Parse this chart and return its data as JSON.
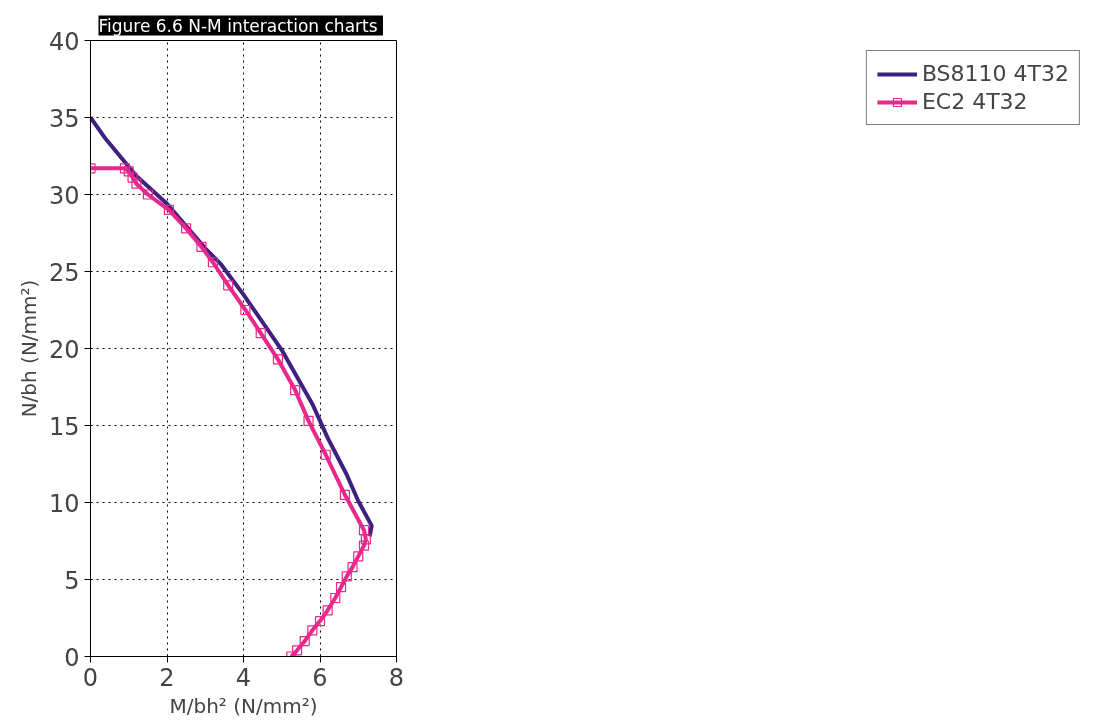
{
  "chart_data": {
    "type": "line",
    "title": "Figure 6.6  N-M interaction charts",
    "xlabel": "M/bh² (N/mm²)",
    "ylabel": "N/bh (N/mm²)",
    "xlim": [
      0,
      8
    ],
    "ylim": [
      0,
      40
    ],
    "xticks": [
      0,
      2,
      4,
      6,
      8
    ],
    "yticks": [
      0,
      5,
      10,
      15,
      20,
      25,
      30,
      35,
      40
    ],
    "grid": true,
    "legend": "right",
    "line_style": "solid",
    "series": [
      {
        "name": "BS8110 4T32",
        "color": "#3f1f7f",
        "marker": "none",
        "x": [
          0,
          0.4,
          0.8,
          1.2,
          2,
          3,
          3.4,
          4,
          5,
          5.8,
          6.2,
          6.7,
          7.0,
          7.35,
          7.3
        ],
        "values": [
          35,
          33.6,
          32.4,
          31.2,
          29.4,
          26.5,
          25.5,
          23.5,
          19.9,
          16.4,
          14.2,
          11.8,
          10.1,
          8.5,
          7.8
        ]
      },
      {
        "name": "EC2 4T32",
        "color": "#e8288a",
        "marker": "square",
        "x": [
          0,
          0.9,
          1.0,
          1.1,
          1.2,
          1.5,
          2.05,
          2.5,
          2.9,
          3.2,
          3.6,
          4.05,
          4.45,
          4.9,
          5.35,
          5.7,
          6.15,
          6.65,
          7.15,
          7.2,
          7.15,
          7.0,
          6.85,
          6.7,
          6.55,
          6.4,
          6.2,
          6.0,
          5.8,
          5.6,
          5.4,
          5.25
        ],
        "values": [
          31.7,
          31.7,
          31.5,
          31.1,
          30.7,
          30.0,
          29.0,
          27.8,
          26.6,
          25.6,
          24.1,
          22.5,
          21.0,
          19.3,
          17.3,
          15.3,
          13.1,
          10.5,
          8.2,
          7.6,
          7.2,
          6.5,
          5.8,
          5.2,
          4.5,
          3.8,
          3.0,
          2.3,
          1.7,
          1.0,
          0.4,
          0
        ]
      }
    ]
  }
}
